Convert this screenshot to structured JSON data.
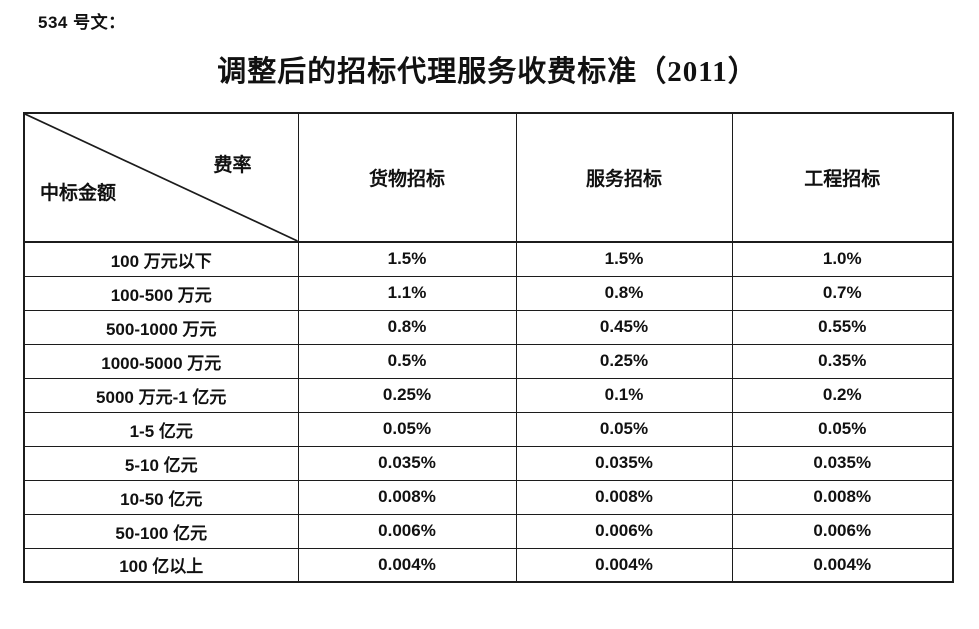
{
  "page": {
    "doc_label": "534 号文：",
    "title": "调整后的招标代理服务收费标准（2011）"
  },
  "table": {
    "corner": {
      "top_right": "费率",
      "bottom_left": "中标金额"
    },
    "columns": [
      "货物招标",
      "服务招标",
      "工程招标"
    ],
    "rows": [
      {
        "amount": "100 万元以下",
        "goods": "1.5%",
        "service": "1.5%",
        "engineering": "1.0%"
      },
      {
        "amount": "100-500 万元",
        "goods": "1.1%",
        "service": "0.8%",
        "engineering": "0.7%"
      },
      {
        "amount": "500-1000 万元",
        "goods": "0.8%",
        "service": "0.45%",
        "engineering": "0.55%"
      },
      {
        "amount": "1000-5000 万元",
        "goods": "0.5%",
        "service": "0.25%",
        "engineering": "0.35%"
      },
      {
        "amount": "5000 万元-1 亿元",
        "goods": "0.25%",
        "service": "0.1%",
        "engineering": "0.2%"
      },
      {
        "amount": "1-5 亿元",
        "goods": "0.05%",
        "service": "0.05%",
        "engineering": "0.05%"
      },
      {
        "amount": "5-10 亿元",
        "goods": "0.035%",
        "service": "0.035%",
        "engineering": "0.035%"
      },
      {
        "amount": "10-50 亿元",
        "goods": "0.008%",
        "service": "0.008%",
        "engineering": "0.008%"
      },
      {
        "amount": "50-100 亿元",
        "goods": "0.006%",
        "service": "0.006%",
        "engineering": "0.006%"
      },
      {
        "amount": "100 亿以上",
        "goods": "0.004%",
        "service": "0.004%",
        "engineering": "0.004%"
      }
    ]
  },
  "colors": {
    "text": "#111111",
    "border": "#1c1c1c",
    "background": "#ffffff"
  }
}
